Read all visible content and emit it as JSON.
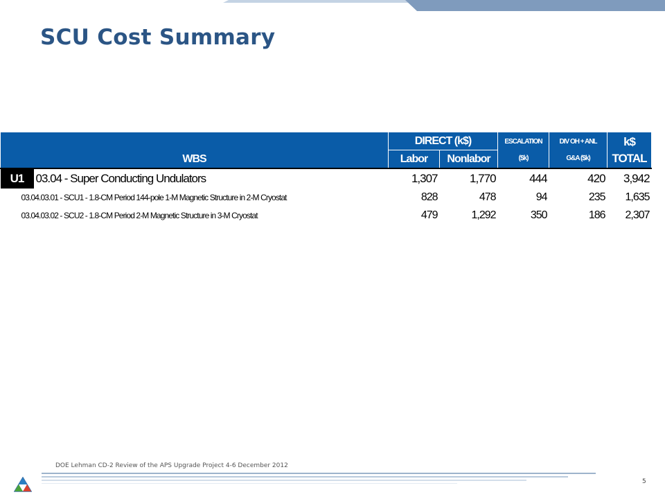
{
  "slide": {
    "title": "SCU Cost Summary",
    "page_number": "5",
    "footer_text": "DOE Lehman CD-2 Review of the APS Upgrade Project    4-6 December 2012"
  },
  "colors": {
    "title": "#2b5585",
    "header_bg": "#0a5ca8",
    "band_light": "#c4d3e4",
    "band_mid": "#7f9bbd"
  },
  "table": {
    "headers": {
      "wbs": "WBS",
      "direct": "DIRECT (k$)",
      "labor": "Labor",
      "nonlabor": "Nonlabor",
      "escalation": "ESCALATION",
      "escalation_unit": "($k)",
      "divoh": "DIV OH + ANL",
      "divoh_sub": "G&A ($k)",
      "ks": "k$",
      "total": "TOTAL"
    },
    "rows": [
      {
        "code": "U1",
        "description": "03.04 - Super Conducting Undulators",
        "labor": "1,307",
        "nonlabor": "1,770",
        "escalation": "444",
        "divoh": "420",
        "total": "3,942"
      },
      {
        "description": "03.04.03.01 - SCU1 - 1.8-CM Period 144-pole 1-M Magnetic Structure in 2-M Cryostat",
        "labor": "828",
        "nonlabor": "478",
        "escalation": "94",
        "divoh": "235",
        "total": "1,635"
      },
      {
        "description": "03.04.03.02 - SCU2 - 1.8-CM Period 2-M Magnetic Structure in 3-M Cryostat",
        "labor": "479",
        "nonlabor": "1,292",
        "escalation": "350",
        "divoh": "186",
        "total": "2,307"
      }
    ]
  },
  "icons": [
    "aps-logo-icon"
  ]
}
